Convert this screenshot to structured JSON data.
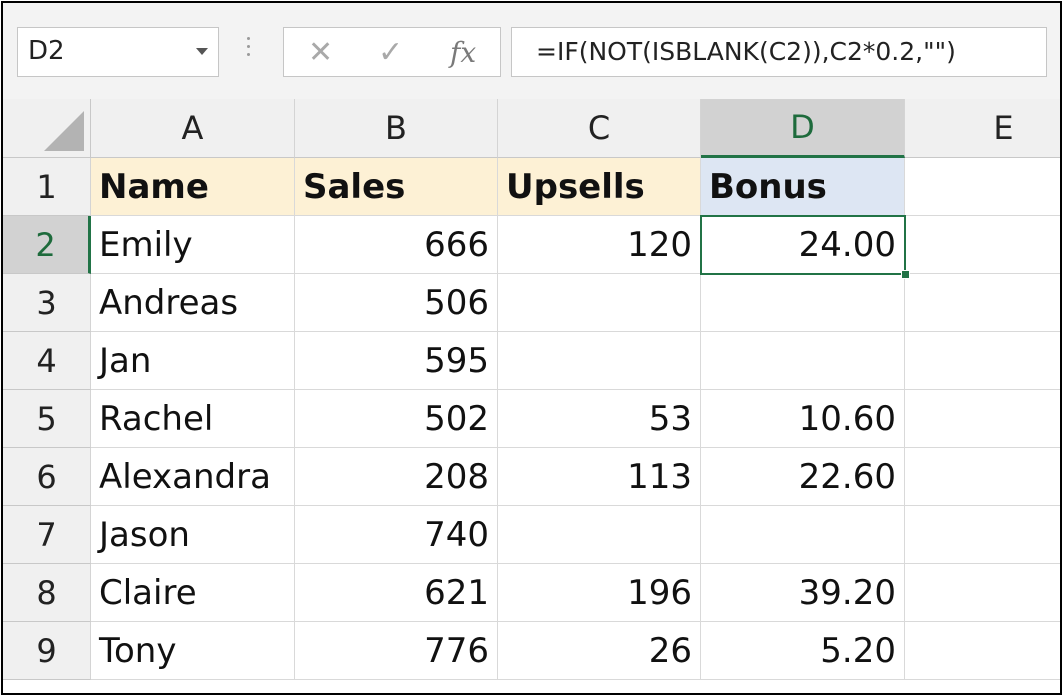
{
  "name_box": {
    "value": "D2"
  },
  "formula_bar": {
    "cancel_icon": "✕",
    "enter_icon": "✓",
    "fx_label": "fx",
    "formula": "=IF(NOT(ISBLANK(C2)),C2*0.2,\"\")"
  },
  "sheet": {
    "selected_cell": "D2",
    "columns": [
      "A",
      "B",
      "C",
      "D",
      "E"
    ],
    "rows": [
      "1",
      "2",
      "3",
      "4",
      "5",
      "6",
      "7",
      "8",
      "9"
    ],
    "cells": [
      [
        "Name",
        "Sales",
        "Upsells",
        "Bonus",
        ""
      ],
      [
        "Emily",
        "666",
        "120",
        "24.00",
        ""
      ],
      [
        "Andreas",
        "506",
        "",
        "",
        ""
      ],
      [
        "Jan",
        "595",
        "",
        "",
        ""
      ],
      [
        "Rachel",
        "502",
        "53",
        "10.60",
        ""
      ],
      [
        "Alexandra",
        "208",
        "113",
        "22.60",
        ""
      ],
      [
        "Jason",
        "740",
        "",
        "",
        ""
      ],
      [
        "Claire",
        "621",
        "196",
        "39.20",
        ""
      ],
      [
        "Tony",
        "776",
        "26",
        "5.20",
        ""
      ]
    ]
  },
  "colors": {
    "accent_green": "#217346",
    "header_fill": "#fdf1d5",
    "bonus_header_fill": "#dde6f3"
  }
}
